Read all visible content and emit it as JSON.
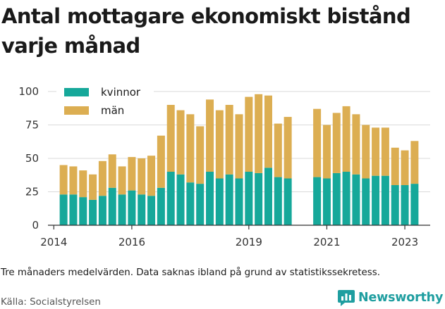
{
  "title": "Antal mottagare ekonomiskt bistånd varje månad",
  "note": "Tre månaders medelvärden. Data saknas ibland på grund av statistikssekretess.",
  "source": "Källa: Socialstyrelsen",
  "brand": {
    "name": "Newsworthy",
    "color": "#1f9ea0",
    "icon": "speech-bubble-bar-chart-icon"
  },
  "colors": {
    "kvinnor": "#16a89a",
    "man": "#dcae52",
    "grid": "#d9d9d9",
    "axis": "#333333"
  },
  "chart_data": {
    "type": "bar",
    "stacked": true,
    "title": "Antal mottagare ekonomiskt bistånd varje månad",
    "xlabel": "",
    "ylabel": "",
    "ylim": [
      0,
      100
    ],
    "yticks": [
      0,
      25,
      50,
      75,
      100
    ],
    "xlim": [
      2013.85,
      2023.65
    ],
    "xticks": [
      2014,
      2016,
      2019,
      2021,
      2023
    ],
    "grid": true,
    "legend": "top-left",
    "x": [
      2014.25,
      2014.5,
      2014.75,
      2015.0,
      2015.25,
      2015.5,
      2015.75,
      2016.0,
      2016.25,
      2016.5,
      2016.75,
      2017.0,
      2017.25,
      2017.5,
      2017.75,
      2018.0,
      2018.25,
      2018.5,
      2018.75,
      2019.0,
      2019.25,
      2019.5,
      2019.75,
      2020.0,
      2020.75,
      2021.0,
      2021.25,
      2021.5,
      2021.75,
      2022.0,
      2022.25,
      2022.5,
      2022.75,
      2023.0,
      2023.25
    ],
    "series": [
      {
        "name": "kvinnor",
        "values": [
          23,
          23,
          21,
          19,
          22,
          28,
          23,
          26,
          23,
          22,
          28,
          40,
          38,
          32,
          31,
          40,
          35,
          38,
          35,
          40,
          39,
          43,
          36,
          35,
          36,
          35,
          39,
          40,
          38,
          35,
          37,
          37,
          30,
          30,
          31
        ]
      },
      {
        "name": "män",
        "values": [
          22,
          21,
          20,
          19,
          26,
          25,
          21,
          25,
          27,
          30,
          39,
          50,
          48,
          51,
          43,
          54,
          51,
          52,
          48,
          56,
          59,
          54,
          40,
          46,
          51,
          40,
          45,
          49,
          45,
          40,
          36,
          36,
          28,
          26,
          32
        ]
      }
    ]
  }
}
